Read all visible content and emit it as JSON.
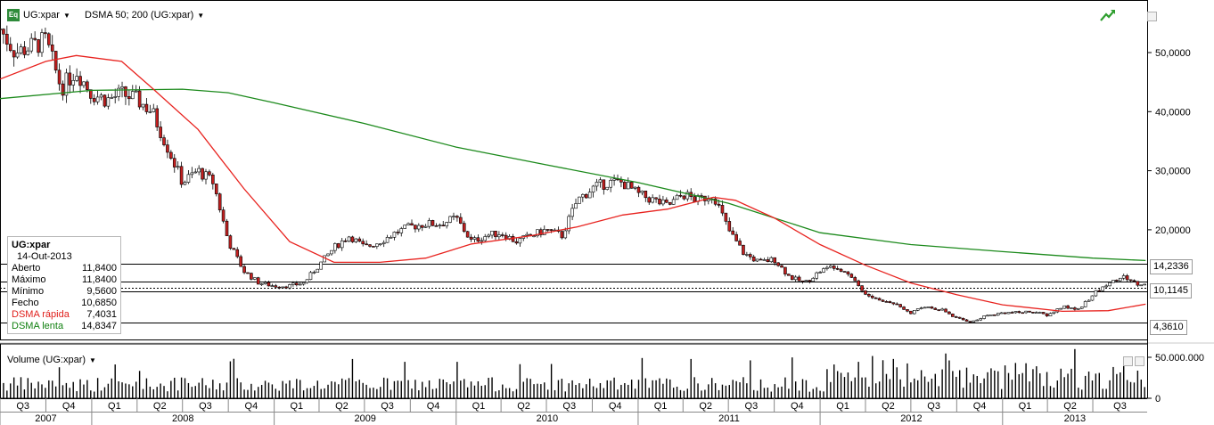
{
  "header": {
    "badge": "Eq",
    "symbol": "UG:xpar",
    "indicator": "DSMA 50; 200 (UG:xpar)",
    "volume_title": "Volume (UG:xpar)"
  },
  "info_box": {
    "title": "UG:xpar",
    "date": "14-Out-2013",
    "rows": [
      {
        "label": "Aberto",
        "value": "11,8400",
        "color": "#000000"
      },
      {
        "label": "Máximo",
        "value": "11,8400",
        "color": "#000000"
      },
      {
        "label": "Mínimo",
        "value": "9,5600",
        "color": "#000000"
      },
      {
        "label": "Fecho",
        "value": "10,6850",
        "color": "#000000"
      },
      {
        "label": "DSMA rápida",
        "value": "7,4031",
        "color": "#e0201c"
      },
      {
        "label": "DSMA lenta",
        "value": "14,8347",
        "color": "#108010"
      }
    ]
  },
  "price_labels": {
    "upper": "14,2336",
    "current": "10,1145",
    "lower": "4,3610"
  },
  "colors": {
    "fast_ma": "#e8231f",
    "slow_ma": "#1c8a1c",
    "candle_up": "#ffffff",
    "candle_down": "#c42020",
    "grid": "#000000"
  },
  "chart_data": {
    "type": "candlestick",
    "price_axis": {
      "ticks": [
        20,
        30,
        40,
        50
      ],
      "tick_labels": [
        "20,0000",
        "30,0000",
        "40,0000",
        "50,0000"
      ]
    },
    "volume_axis": {
      "ticks": [
        0,
        50000000
      ],
      "tick_labels": [
        "0",
        "50.000.000"
      ]
    },
    "horizontal_levels": [
      14.2336,
      11.29,
      10.1145,
      9.54,
      4.361
    ],
    "x_axis": {
      "start": "2007-07-01",
      "end": "2013-10-18",
      "quarters": [
        {
          "label": "Q3",
          "start": "2007-07-01"
        },
        {
          "label": "Q4",
          "start": "2007-10-01"
        },
        {
          "label": "Q1",
          "start": "2008-01-01"
        },
        {
          "label": "Q2",
          "start": "2008-04-01"
        },
        {
          "label": "Q3",
          "start": "2008-07-01"
        },
        {
          "label": "Q4",
          "start": "2008-10-01"
        },
        {
          "label": "Q1",
          "start": "2009-01-01"
        },
        {
          "label": "Q2",
          "start": "2009-04-01"
        },
        {
          "label": "Q3",
          "start": "2009-07-01"
        },
        {
          "label": "Q4",
          "start": "2009-10-01"
        },
        {
          "label": "Q1",
          "start": "2010-01-01"
        },
        {
          "label": "Q2",
          "start": "2010-04-01"
        },
        {
          "label": "Q3",
          "start": "2010-07-01"
        },
        {
          "label": "Q4",
          "start": "2010-10-01"
        },
        {
          "label": "Q1",
          "start": "2011-01-01"
        },
        {
          "label": "Q2",
          "start": "2011-04-01"
        },
        {
          "label": "Q3",
          "start": "2011-07-01"
        },
        {
          "label": "Q4",
          "start": "2011-10-01"
        },
        {
          "label": "Q1",
          "start": "2012-01-01"
        },
        {
          "label": "Q2",
          "start": "2012-04-01"
        },
        {
          "label": "Q3",
          "start": "2012-07-01"
        },
        {
          "label": "Q4",
          "start": "2012-10-01"
        },
        {
          "label": "Q1",
          "start": "2013-01-01"
        },
        {
          "label": "Q2",
          "start": "2013-04-01"
        },
        {
          "label": "Q3",
          "start": "2013-07-01"
        }
      ],
      "years": [
        {
          "label": "2007",
          "start": "2007-07-01"
        },
        {
          "label": "2008",
          "start": "2008-01-01"
        },
        {
          "label": "2009",
          "start": "2009-01-01"
        },
        {
          "label": "2010",
          "start": "2010-01-01"
        },
        {
          "label": "2011",
          "start": "2011-01-01"
        },
        {
          "label": "2012",
          "start": "2012-01-01"
        },
        {
          "label": "2013",
          "start": "2013-01-01"
        }
      ]
    },
    "close_series": {
      "name": "UG:xpar",
      "points": [
        [
          "2007-07-01",
          54
        ],
        [
          "2007-08-01",
          50
        ],
        [
          "2007-09-01",
          51
        ],
        [
          "2007-10-01",
          52
        ],
        [
          "2007-11-01",
          44
        ],
        [
          "2007-12-01",
          47
        ],
        [
          "2008-01-01",
          43
        ],
        [
          "2008-02-01",
          42
        ],
        [
          "2008-03-01",
          43
        ],
        [
          "2008-04-01",
          42
        ],
        [
          "2008-05-01",
          40
        ],
        [
          "2008-06-01",
          34
        ],
        [
          "2008-07-01",
          28
        ],
        [
          "2008-08-01",
          30
        ],
        [
          "2008-09-01",
          28
        ],
        [
          "2008-10-01",
          18
        ],
        [
          "2008-11-01",
          13
        ],
        [
          "2008-12-01",
          11
        ],
        [
          "2009-01-01",
          10.5
        ],
        [
          "2009-02-01",
          10.5
        ],
        [
          "2009-03-01",
          11
        ],
        [
          "2009-04-01",
          14
        ],
        [
          "2009-05-01",
          17
        ],
        [
          "2009-06-01",
          19
        ],
        [
          "2009-07-01",
          17
        ],
        [
          "2009-08-01",
          18
        ],
        [
          "2009-09-01",
          19.5
        ],
        [
          "2009-10-01",
          20.5
        ],
        [
          "2009-11-01",
          21
        ],
        [
          "2009-12-01",
          21
        ],
        [
          "2010-01-01",
          22
        ],
        [
          "2010-02-01",
          18
        ],
        [
          "2010-03-01",
          19
        ],
        [
          "2010-04-01",
          19.5
        ],
        [
          "2010-05-01",
          18
        ],
        [
          "2010-06-01",
          19
        ],
        [
          "2010-07-01",
          20
        ],
        [
          "2010-08-01",
          19
        ],
        [
          "2010-09-01",
          25
        ],
        [
          "2010-10-01",
          27
        ],
        [
          "2010-11-01",
          28
        ],
        [
          "2010-12-01",
          28
        ],
        [
          "2011-01-01",
          26
        ],
        [
          "2011-02-01",
          25
        ],
        [
          "2011-03-01",
          24
        ],
        [
          "2011-04-01",
          26
        ],
        [
          "2011-05-01",
          25
        ],
        [
          "2011-06-01",
          26
        ],
        [
          "2011-07-01",
          20
        ],
        [
          "2011-08-01",
          16
        ],
        [
          "2011-09-01",
          14.5
        ],
        [
          "2011-10-01",
          15
        ],
        [
          "2011-11-01",
          12
        ],
        [
          "2011-12-01",
          11
        ],
        [
          "2012-01-01",
          13
        ],
        [
          "2012-02-01",
          14
        ],
        [
          "2012-03-01",
          12.5
        ],
        [
          "2012-04-01",
          9
        ],
        [
          "2012-05-01",
          8
        ],
        [
          "2012-06-01",
          7.5
        ],
        [
          "2012-07-01",
          6
        ],
        [
          "2012-08-01",
          7
        ],
        [
          "2012-09-01",
          6.5
        ],
        [
          "2012-10-01",
          5
        ],
        [
          "2012-11-01",
          4.4
        ],
        [
          "2012-12-01",
          5.5
        ],
        [
          "2013-01-01",
          6
        ],
        [
          "2013-02-01",
          6
        ],
        [
          "2013-03-01",
          6.2
        ],
        [
          "2013-04-01",
          5.5
        ],
        [
          "2013-05-01",
          7
        ],
        [
          "2013-06-01",
          6.5
        ],
        [
          "2013-07-01",
          9
        ],
        [
          "2013-08-01",
          11
        ],
        [
          "2013-09-01",
          12
        ],
        [
          "2013-10-01",
          10.7
        ]
      ]
    },
    "fast_ma_series": {
      "name": "DSMA rápida",
      "points": [
        [
          "2007-07-01",
          45.5
        ],
        [
          "2007-10-01",
          48.5
        ],
        [
          "2007-12-01",
          49.5
        ],
        [
          "2008-03-01",
          48.5
        ],
        [
          "2008-05-01",
          44
        ],
        [
          "2008-08-01",
          37
        ],
        [
          "2008-11-01",
          27
        ],
        [
          "2009-02-01",
          18
        ],
        [
          "2009-05-01",
          14.5
        ],
        [
          "2009-08-01",
          14.5
        ],
        [
          "2009-11-01",
          15.2
        ],
        [
          "2010-02-01",
          17.6
        ],
        [
          "2010-06-01",
          19
        ],
        [
          "2010-09-01",
          20.5
        ],
        [
          "2010-12-01",
          22.5
        ],
        [
          "2011-03-01",
          23.5
        ],
        [
          "2011-06-01",
          25.5
        ],
        [
          "2011-07-15",
          25
        ],
        [
          "2011-10-01",
          22
        ],
        [
          "2012-01-01",
          17.5
        ],
        [
          "2012-04-01",
          14
        ],
        [
          "2012-07-01",
          11
        ],
        [
          "2012-10-01",
          9
        ],
        [
          "2013-01-01",
          7.3
        ],
        [
          "2013-05-01",
          6.2
        ],
        [
          "2013-08-01",
          6.3
        ],
        [
          "2013-10-15",
          7.4
        ]
      ]
    },
    "slow_ma_series": {
      "name": "DSMA lenta",
      "points": [
        [
          "2007-07-01",
          42.2
        ],
        [
          "2008-01-01",
          43.6
        ],
        [
          "2008-07-01",
          43.8
        ],
        [
          "2008-10-01",
          43.2
        ],
        [
          "2009-01-01",
          41.5
        ],
        [
          "2009-07-01",
          38
        ],
        [
          "2010-01-01",
          34
        ],
        [
          "2010-07-01",
          31
        ],
        [
          "2011-01-01",
          28
        ],
        [
          "2011-07-01",
          24.5
        ],
        [
          "2011-10-01",
          22
        ],
        [
          "2012-01-01",
          19.5
        ],
        [
          "2012-07-01",
          17.5
        ],
        [
          "2013-01-01",
          16.3
        ],
        [
          "2013-07-01",
          15.2
        ],
        [
          "2013-10-15",
          14.8
        ]
      ]
    }
  }
}
